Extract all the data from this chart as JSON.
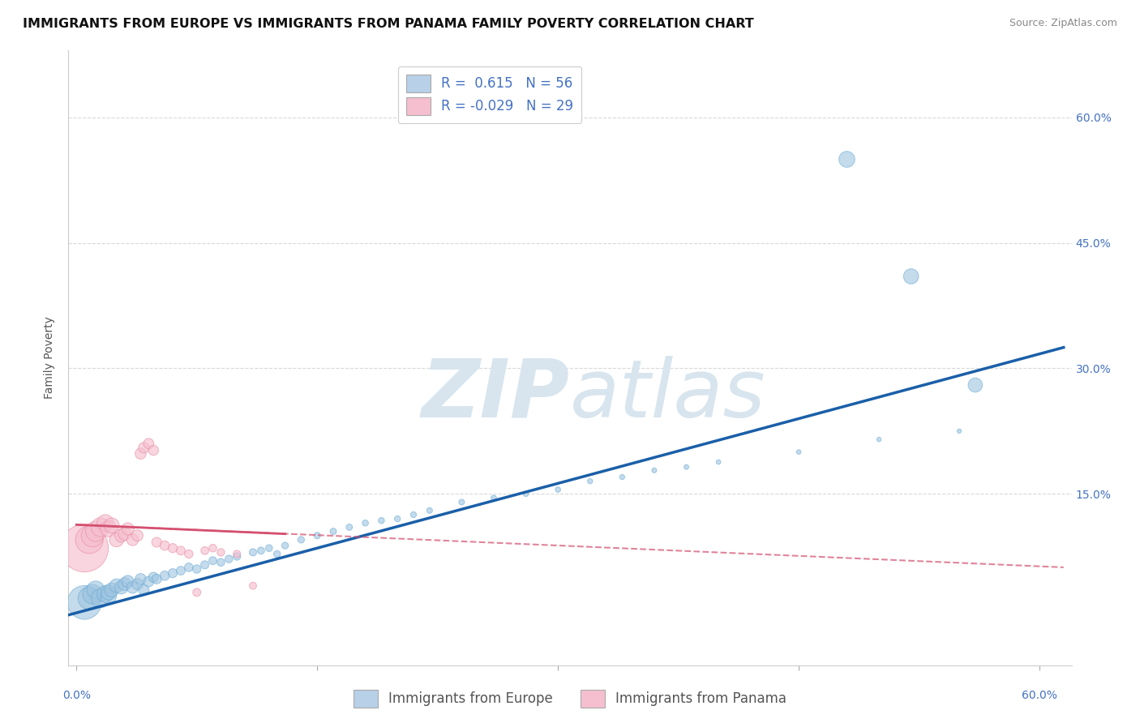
{
  "title": "IMMIGRANTS FROM EUROPE VS IMMIGRANTS FROM PANAMA FAMILY POVERTY CORRELATION CHART",
  "source": "Source: ZipAtlas.com",
  "ylabel": "Family Poverty",
  "ytick_labels": [
    "15.0%",
    "30.0%",
    "45.0%",
    "60.0%"
  ],
  "ytick_values": [
    0.15,
    0.3,
    0.45,
    0.6
  ],
  "xtick_values": [
    0.0,
    0.15,
    0.3,
    0.45,
    0.6
  ],
  "xlim": [
    -0.005,
    0.62
  ],
  "ylim": [
    -0.055,
    0.68
  ],
  "legend_entries": [
    {
      "label": "R =  0.615   N = 56",
      "color": "#b8d0e8"
    },
    {
      "label": "R = -0.029   N = 29",
      "color": "#f5bfcf"
    }
  ],
  "europe_scatter": {
    "color": "#9ec4e0",
    "edge_color": "#6aaad4",
    "alpha": 0.6,
    "x": [
      0.005,
      0.008,
      0.01,
      0.012,
      0.015,
      0.018,
      0.02,
      0.02,
      0.022,
      0.025,
      0.028,
      0.03,
      0.032,
      0.035,
      0.038,
      0.04,
      0.042,
      0.045,
      0.048,
      0.05,
      0.055,
      0.06,
      0.065,
      0.07,
      0.075,
      0.08,
      0.085,
      0.09,
      0.095,
      0.1,
      0.11,
      0.115,
      0.12,
      0.125,
      0.13,
      0.14,
      0.15,
      0.16,
      0.17,
      0.18,
      0.19,
      0.2,
      0.21,
      0.22,
      0.24,
      0.26,
      0.28,
      0.3,
      0.32,
      0.34,
      0.36,
      0.38,
      0.4,
      0.45,
      0.5,
      0.55
    ],
    "y": [
      0.02,
      0.025,
      0.03,
      0.035,
      0.025,
      0.03,
      0.028,
      0.032,
      0.035,
      0.04,
      0.038,
      0.042,
      0.045,
      0.038,
      0.042,
      0.048,
      0.035,
      0.045,
      0.05,
      0.048,
      0.052,
      0.055,
      0.058,
      0.062,
      0.06,
      0.065,
      0.07,
      0.068,
      0.072,
      0.075,
      0.08,
      0.082,
      0.085,
      0.078,
      0.088,
      0.095,
      0.1,
      0.105,
      0.11,
      0.115,
      0.118,
      0.12,
      0.125,
      0.13,
      0.14,
      0.145,
      0.15,
      0.155,
      0.165,
      0.17,
      0.178,
      0.182,
      0.188,
      0.2,
      0.215,
      0.225
    ],
    "sizes": [
      900,
      400,
      300,
      250,
      280,
      220,
      200,
      180,
      160,
      150,
      140,
      130,
      120,
      110,
      100,
      95,
      90,
      85,
      80,
      75,
      70,
      65,
      60,
      58,
      55,
      52,
      50,
      48,
      46,
      44,
      42,
      40,
      38,
      36,
      35,
      34,
      33,
      32,
      31,
      30,
      29,
      28,
      27,
      26,
      25,
      24,
      23,
      22,
      21,
      20,
      19,
      18,
      17,
      16,
      15,
      14
    ]
  },
  "europe_outliers": {
    "color": "#9ec4e0",
    "edge_color": "#6aaad4",
    "alpha": 0.6,
    "x": [
      0.48,
      0.52,
      0.56
    ],
    "y": [
      0.55,
      0.41,
      0.28
    ],
    "sizes": [
      200,
      180,
      160
    ]
  },
  "europe_trend": {
    "color": "#1a5fa8",
    "x_start": -0.005,
    "x_end": 0.615,
    "y_start": 0.005,
    "y_end": 0.325,
    "linewidth": 2.5
  },
  "panama_scatter": {
    "color": "#f5bfcf",
    "edge_color": "#e890a8",
    "alpha": 0.65,
    "x": [
      0.005,
      0.008,
      0.01,
      0.012,
      0.015,
      0.018,
      0.02,
      0.022,
      0.025,
      0.028,
      0.03,
      0.032,
      0.035,
      0.038,
      0.04,
      0.042,
      0.045,
      0.048,
      0.05,
      0.055,
      0.06,
      0.065,
      0.07,
      0.075,
      0.08,
      0.085,
      0.09,
      0.1,
      0.11
    ],
    "y": [
      0.085,
      0.095,
      0.1,
      0.105,
      0.11,
      0.115,
      0.108,
      0.112,
      0.095,
      0.1,
      0.102,
      0.108,
      0.095,
      0.1,
      0.198,
      0.205,
      0.21,
      0.202,
      0.092,
      0.088,
      0.085,
      0.082,
      0.078,
      0.032,
      0.082,
      0.085,
      0.08,
      0.078,
      0.04
    ],
    "sizes": [
      1800,
      600,
      400,
      320,
      280,
      220,
      200,
      180,
      160,
      140,
      130,
      120,
      110,
      100,
      95,
      90,
      85,
      80,
      75,
      70,
      65,
      60,
      55,
      50,
      48,
      46,
      44,
      42,
      40
    ]
  },
  "panama_trend_solid": {
    "color": "#d45070",
    "x_start": 0.0,
    "x_end": 0.13,
    "y_start": 0.113,
    "y_end": 0.102,
    "linewidth": 2.0
  },
  "panama_trend_dash": {
    "color": "#d45070",
    "x_start": 0.0,
    "x_end": 0.615,
    "y_start": 0.113,
    "y_end": 0.062,
    "linewidth": 1.5,
    "linestyle": "--"
  },
  "watermark_zip": "ZIP",
  "watermark_atlas": "atlas",
  "watermark_color": "#d8e5ef",
  "background_color": "#ffffff",
  "grid_color": "#d0d0d0",
  "grid_linestyle": "--",
  "grid_alpha": 0.8,
  "title_fontsize": 11.5,
  "axis_label_fontsize": 10,
  "tick_fontsize": 10,
  "right_axis_color": "#4472c4",
  "legend_fontsize": 12
}
